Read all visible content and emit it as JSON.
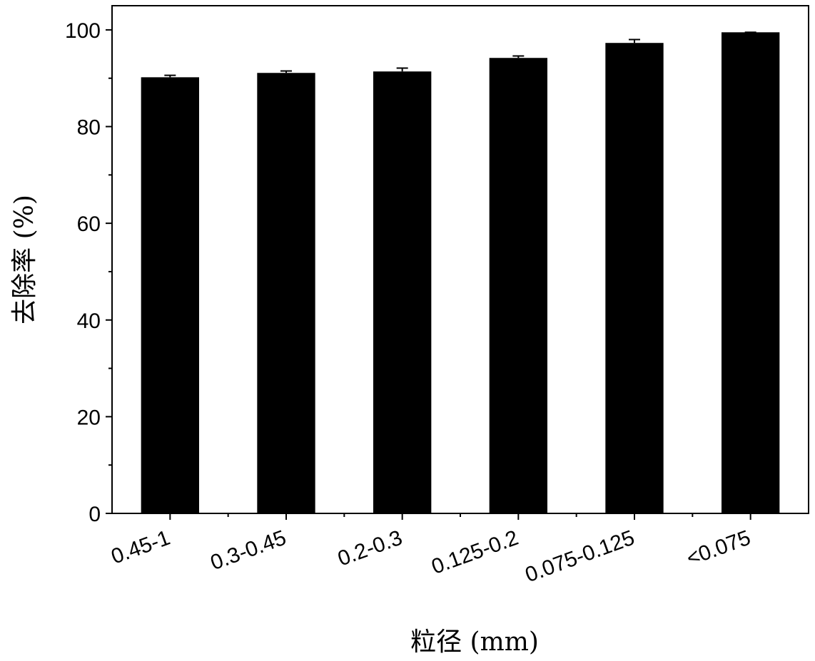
{
  "chart_data": {
    "type": "bar",
    "x_label": "粒径 (mm)",
    "y_label": "去除率 (%)",
    "categories": [
      "0.45-1",
      "0.3-0.45",
      "0.2-0.3",
      "0.125-0.2",
      "0.075-0.125",
      "<0.075"
    ],
    "values": [
      90.2,
      91.1,
      91.4,
      94.2,
      97.3,
      99.5
    ],
    "errors": [
      0.4,
      0.4,
      0.7,
      0.4,
      0.7,
      0
    ],
    "color": "#000000",
    "ylim": [
      0,
      105
    ],
    "yticks": [
      0,
      20,
      40,
      60,
      80,
      100
    ]
  }
}
